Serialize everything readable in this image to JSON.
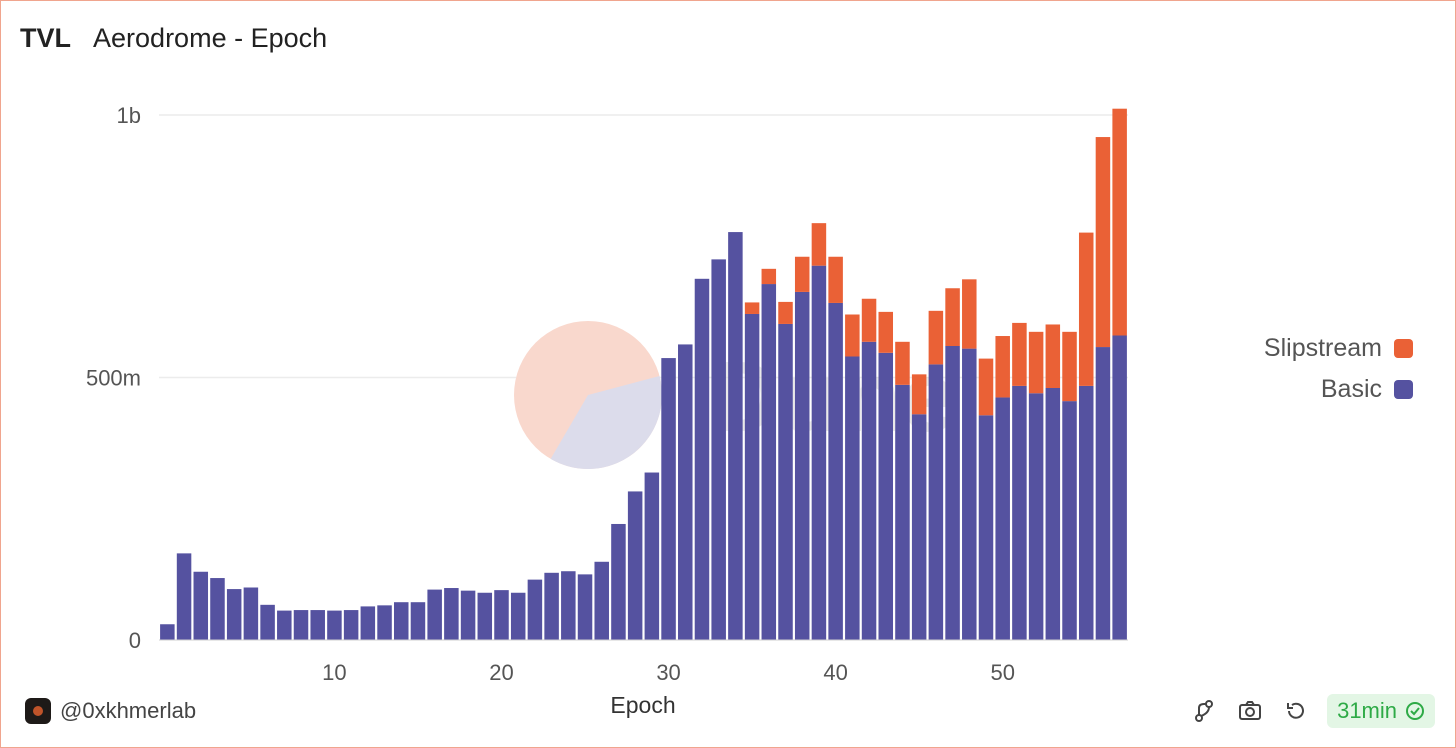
{
  "header": {
    "title": "TVL",
    "subtitle": "Aerodrome - Epoch"
  },
  "footer": {
    "user": "@0xkhmerlab",
    "refresh_label": "31min"
  },
  "watermark": {
    "text": "Dune"
  },
  "colors": {
    "basic": "#5552a0",
    "slipstream": "#ea6136",
    "grid": "#ececec",
    "badge_text": "#2eaa46",
    "badge_bg": "#e3f6e5"
  },
  "chart_data": {
    "type": "bar",
    "stacked": true,
    "title": "Aerodrome - Epoch",
    "xlabel": "Epoch",
    "ylabel": "",
    "ylim": [
      0,
      1000000000
    ],
    "y_ticks": [
      0,
      500000000,
      1000000000
    ],
    "y_tick_labels": [
      "0",
      "500m",
      "1b"
    ],
    "x_ticks": [
      10,
      20,
      30,
      40,
      50
    ],
    "x_tick_labels": [
      "10",
      "20",
      "30",
      "40",
      "50"
    ],
    "legend_position": "right",
    "categories": [
      0,
      1,
      2,
      3,
      4,
      5,
      6,
      7,
      8,
      9,
      10,
      11,
      12,
      13,
      14,
      15,
      16,
      17,
      18,
      19,
      20,
      21,
      22,
      23,
      24,
      25,
      26,
      27,
      28,
      29,
      30,
      31,
      32,
      33,
      34,
      35,
      36,
      37,
      38,
      39,
      40,
      41,
      42,
      43,
      44,
      45,
      46,
      47,
      48,
      49,
      50,
      51,
      52,
      53,
      54,
      55,
      56,
      57
    ],
    "series": [
      {
        "name": "Basic",
        "values": [
          30,
          165,
          130,
          118,
          97,
          100,
          67,
          56,
          57,
          57,
          56,
          57,
          64,
          66,
          72,
          72,
          96,
          99,
          94,
          90,
          95,
          90,
          115,
          128,
          131,
          125,
          149,
          221,
          283,
          319,
          537,
          563,
          688,
          725,
          777,
          621,
          678,
          602,
          663,
          713,
          642,
          540,
          568,
          547,
          486,
          430,
          525,
          560,
          555,
          428,
          462,
          484,
          470,
          480,
          455,
          484,
          558,
          580
        ]
      },
      {
        "name": "Slipstream",
        "values": [
          0,
          0,
          0,
          0,
          0,
          0,
          0,
          0,
          0,
          0,
          0,
          0,
          0,
          0,
          0,
          0,
          0,
          0,
          0,
          0,
          0,
          0,
          0,
          0,
          0,
          0,
          0,
          0,
          0,
          0,
          0,
          0,
          0,
          0,
          0,
          22,
          29,
          42,
          67,
          81,
          88,
          80,
          82,
          78,
          82,
          76,
          102,
          110,
          132,
          108,
          117,
          120,
          117,
          121,
          132,
          292,
          400,
          432
        ]
      }
    ]
  }
}
